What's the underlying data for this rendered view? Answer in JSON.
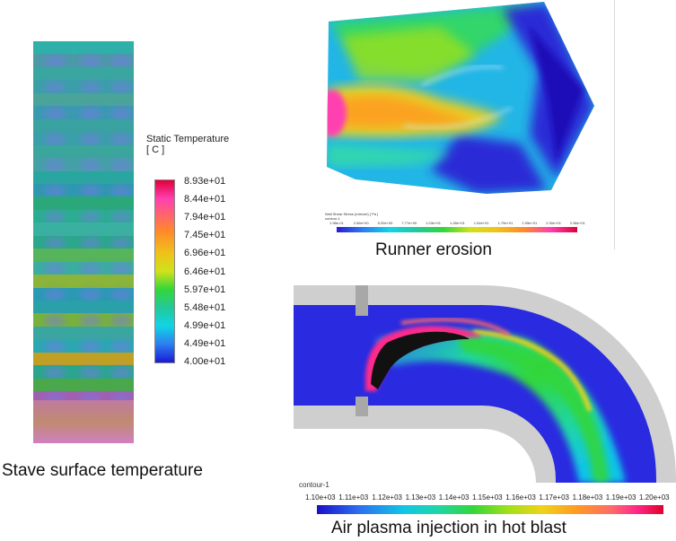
{
  "stave": {
    "legend_title_line1": "Static Temperature",
    "legend_title_line2": "[ C ]",
    "legend_labels": [
      "8.93e+01",
      "8.44e+01",
      "7.94e+01",
      "7.45e+01",
      "6.96e+01",
      "6.46e+01",
      "5.97e+01",
      "5.48e+01",
      "4.99e+01",
      "4.49e+01",
      "4.00e+01"
    ],
    "caption": "Stave surface temperature"
  },
  "runner": {
    "colorbar_title": "Wall Shear Stress (mixture) [ Pa ]",
    "contour_label": "contour-1",
    "colorbar_labels": [
      "1.98e-01",
      "2.66e+00",
      "5.20e+00",
      "7.77e+00",
      "1.03e+01",
      "1.28e+01",
      "1.54e+01",
      "1.79e+01",
      "2.05e+01",
      "2.30e+01",
      "2.56e+01"
    ],
    "caption": "Runner erosion"
  },
  "plasma": {
    "contour_label": "contour-1",
    "colorbar_labels": [
      "1.10e+03",
      "1.11e+03",
      "1.12e+03",
      "1.13e+03",
      "1.14e+03",
      "1.15e+03",
      "1.16e+03",
      "1.17e+03",
      "1.18e+03",
      "1.19e+03",
      "1.20e+03"
    ],
    "caption": "Air plasma injection in hot blast"
  }
}
